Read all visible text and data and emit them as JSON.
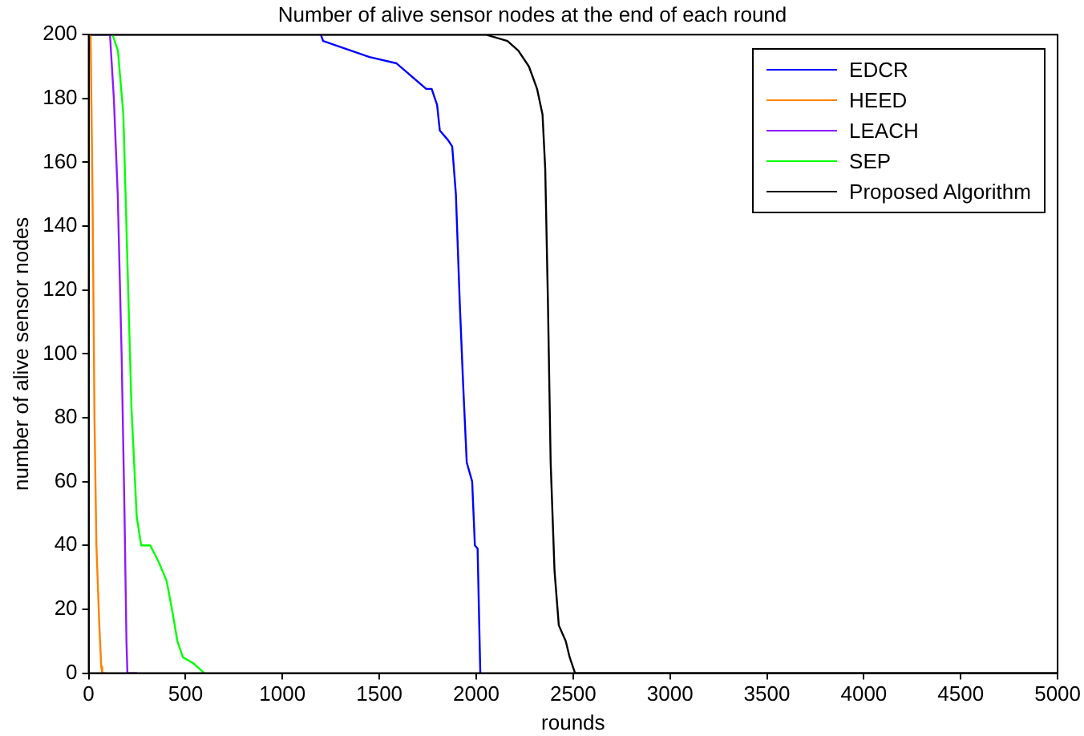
{
  "chart_data": {
    "type": "line",
    "title": "Number of alive sensor nodes at the end of each round",
    "xlabel": "rounds",
    "ylabel": "number of alive sensor nodes",
    "xlim": [
      0,
      5000
    ],
    "xticks": [
      0,
      500,
      1000,
      1500,
      2000,
      2500,
      3000,
      3500,
      4000,
      4500,
      5000
    ],
    "ylim": [
      0,
      200
    ],
    "yticks": [
      0,
      20,
      40,
      60,
      80,
      100,
      120,
      140,
      160,
      180,
      200
    ],
    "grid": false,
    "legend": "top right",
    "marker": "none",
    "line_style": "solid",
    "series": [
      {
        "name": "EDCR",
        "color": "#0000ff",
        "x": [
          1198,
          1210,
          1449,
          1589,
          1742,
          1770,
          1798,
          1812,
          1854,
          1876,
          1895,
          1915,
          1932,
          1951,
          1979,
          1993,
          2007,
          2021
        ],
        "values": [
          200,
          198,
          193,
          191,
          183,
          183,
          178,
          170,
          167,
          165,
          150,
          116,
          91,
          66,
          60,
          40,
          39,
          0
        ]
      },
      {
        "name": "HEED",
        "color": "#ff8000",
        "x": [
          0,
          10,
          20,
          30,
          40,
          55,
          65,
          70,
          90
        ],
        "values": [
          200,
          200,
          150,
          80,
          40,
          15,
          2,
          0,
          0
        ]
      },
      {
        "name": "LEACH",
        "color": "#8c1aff",
        "x": [
          0,
          110,
          130,
          150,
          170,
          185,
          195,
          200,
          250
        ],
        "values": [
          200,
          200,
          180,
          150,
          100,
          50,
          10,
          0,
          0
        ]
      },
      {
        "name": "SEP",
        "color": "#00ff00",
        "x": [
          0,
          123,
          151,
          179,
          198,
          221,
          248,
          271,
          318,
          360,
          402,
          430,
          458,
          486,
          542,
          597
        ],
        "values": [
          200,
          200,
          195,
          175,
          133,
          83,
          49,
          40,
          40,
          35,
          29,
          20,
          10,
          5,
          3,
          0
        ]
      },
      {
        "name": "Proposed Algorithm",
        "color": "#000000",
        "x": [
          0,
          2049,
          2161,
          2217,
          2272,
          2314,
          2342,
          2356,
          2370,
          2384,
          2404,
          2426,
          2462,
          2482,
          2510,
          5000
        ],
        "values": [
          200,
          200,
          198,
          195,
          190,
          183,
          175,
          158,
          116,
          66,
          32,
          15,
          10,
          5,
          0,
          0
        ]
      }
    ]
  }
}
